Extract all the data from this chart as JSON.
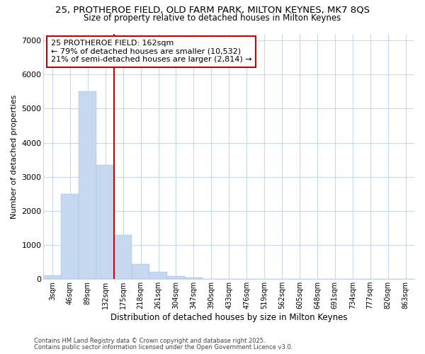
{
  "title_line1": "25, PROTHEROE FIELD, OLD FARM PARK, MILTON KEYNES, MK7 8QS",
  "title_line2": "Size of property relative to detached houses in Milton Keynes",
  "xlabel": "Distribution of detached houses by size in Milton Keynes",
  "ylabel": "Number of detached properties",
  "categories": [
    "3sqm",
    "46sqm",
    "89sqm",
    "132sqm",
    "175sqm",
    "218sqm",
    "261sqm",
    "304sqm",
    "347sqm",
    "390sqm",
    "433sqm",
    "476sqm",
    "519sqm",
    "562sqm",
    "605sqm",
    "648sqm",
    "691sqm",
    "734sqm",
    "777sqm",
    "820sqm",
    "863sqm"
  ],
  "bar_values": [
    100,
    2500,
    5500,
    3350,
    1300,
    450,
    220,
    80,
    50,
    0,
    0,
    0,
    0,
    0,
    0,
    0,
    0,
    0,
    0,
    0,
    0
  ],
  "bar_color": "#c5d8f0",
  "bar_edge_color": "#9bbcd8",
  "vline_color": "#cc0000",
  "annotation_text": "25 PROTHEROE FIELD: 162sqm\n← 79% of detached houses are smaller (10,532)\n21% of semi-detached houses are larger (2,814) →",
  "box_facecolor": "#ffffff",
  "box_edgecolor": "#cc0000",
  "ylim": [
    0,
    7200
  ],
  "yticks": [
    0,
    1000,
    2000,
    3000,
    4000,
    5000,
    6000,
    7000
  ],
  "footer_line1": "Contains HM Land Registry data © Crown copyright and database right 2025.",
  "footer_line2": "Contains public sector information licensed under the Open Government Licence v3.0.",
  "bg_color": "#ffffff",
  "grid_color": "#c8d8ec",
  "title1_fontsize": 9.5,
  "title2_fontsize": 8.5
}
